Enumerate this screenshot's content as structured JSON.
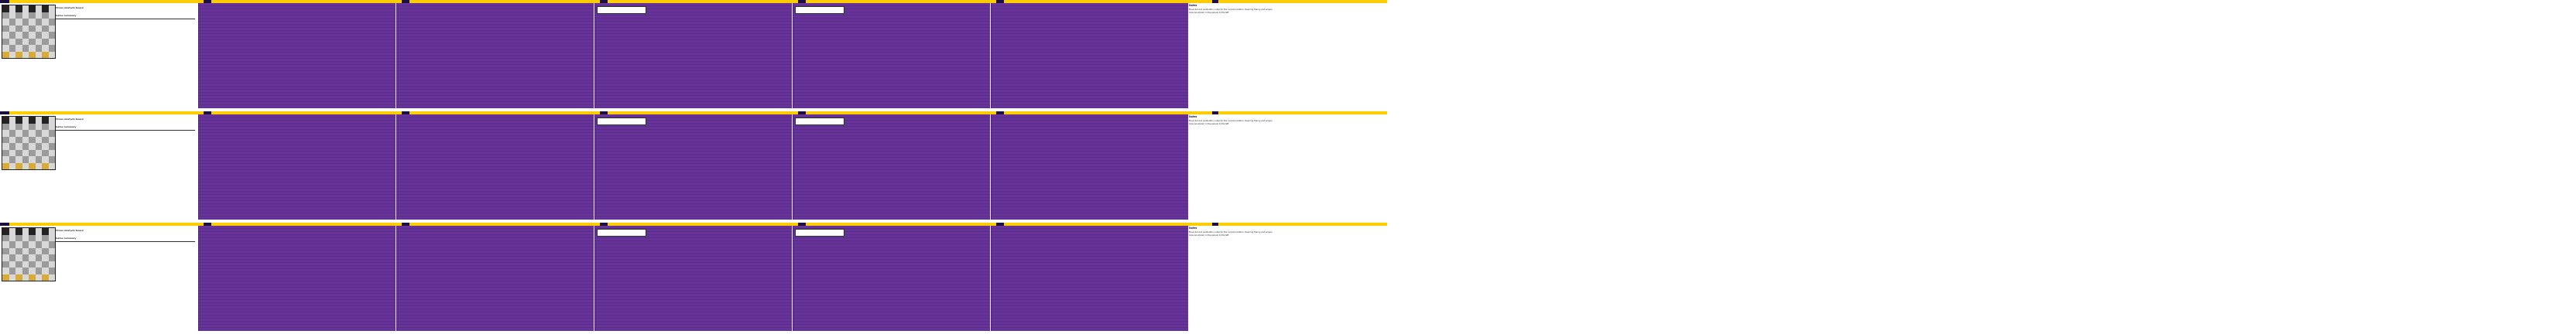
{
  "rows": [
    {
      "id": "row-1",
      "info_title": "Chess analysis board",
      "info_sub": "Game summary",
      "panels": [
        "panel-a",
        "panel-b",
        "panel-c",
        "panel-d",
        "panel-e"
      ],
      "side_header": "Notes",
      "side_text": "Move list and evaluation notes for the current position. Opening theory and engine lines are shown in the panels to the left."
    },
    {
      "id": "row-2",
      "info_title": "Chess analysis board",
      "info_sub": "Game summary",
      "panels": [
        "panel-a",
        "panel-b",
        "panel-c",
        "panel-d",
        "panel-e"
      ],
      "side_header": "Notes",
      "side_text": "Move list and evaluation notes for the current position. Opening theory and engine lines are shown in the panels to the left."
    },
    {
      "id": "row-3",
      "info_title": "Chess analysis board",
      "info_sub": "Game summary",
      "panels": [
        "panel-a",
        "panel-b",
        "panel-c",
        "panel-d",
        "panel-e"
      ],
      "side_header": "Notes",
      "side_text": "Move list and evaluation notes for the current position. Opening theory and engine lines are shown in the panels to the left."
    }
  ],
  "colors": {
    "accent_bar": "#ffcc00",
    "panel_bg": "#663399",
    "dark_tab": "#1a1040"
  }
}
